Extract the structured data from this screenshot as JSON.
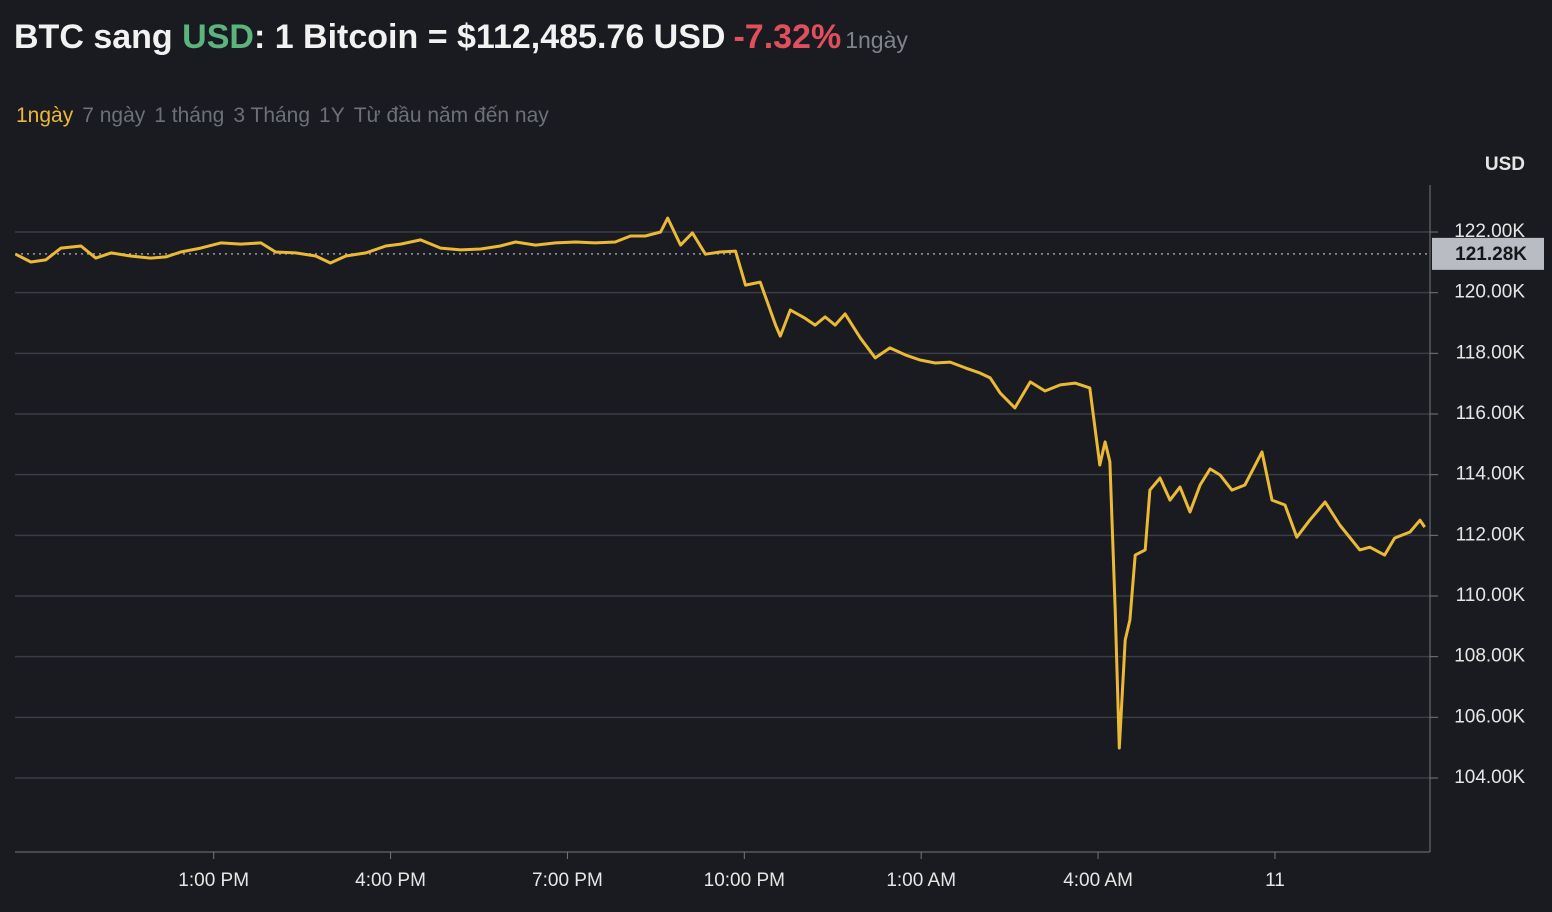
{
  "header": {
    "pair": "BTC sang",
    "quote": "USD",
    "rate": ": 1 Bitcoin = $112,485.76 USD",
    "change": "-7.32%",
    "period": "1ngày"
  },
  "tabs": [
    "1ngày",
    "7 ngày",
    "1 tháng",
    "3 Tháng",
    "1Y",
    "Từ đầu năm đến nay"
  ],
  "active_tab": 0,
  "chart_data": {
    "type": "line",
    "y_label": "USD",
    "color": "#eab935",
    "x": [
      9.64,
      9.9,
      10.15,
      10.41,
      10.75,
      11.0,
      11.26,
      11.59,
      11.93,
      12.19,
      12.44,
      12.78,
      13.12,
      13.46,
      13.8,
      14.05,
      14.39,
      14.73,
      14.98,
      15.24,
      15.58,
      15.92,
      16.17,
      16.51,
      16.85,
      17.19,
      17.53,
      17.86,
      18.12,
      18.46,
      18.8,
      19.14,
      19.47,
      19.81,
      20.07,
      20.32,
      20.58,
      20.7,
      20.92,
      21.12,
      21.34,
      21.59,
      21.85,
      22.02,
      22.27,
      22.53,
      22.61,
      22.78,
      23.03,
      23.2,
      23.37,
      23.54,
      23.71,
      23.97,
      24.22,
      24.47,
      24.73,
      24.98,
      25.24,
      25.49,
      25.75,
      26.0,
      26.17,
      26.34,
      26.59,
      26.85,
      27.1,
      27.36,
      27.61,
      27.86,
      28.03,
      28.12,
      28.2,
      28.29,
      28.36,
      28.46,
      28.54,
      28.63,
      28.8,
      28.88,
      29.05,
      29.22,
      29.39,
      29.56,
      29.73,
      29.9,
      30.07,
      30.27,
      30.49,
      30.78,
      30.95,
      31.17,
      31.37,
      31.59,
      31.85,
      32.1,
      32.44,
      32.61,
      32.86,
      33.03,
      33.29,
      33.46,
      33.54
    ],
    "values": [
      121270,
      121010,
      121080,
      121470,
      121540,
      121140,
      121310,
      121210,
      121140,
      121180,
      121340,
      121470,
      121640,
      121600,
      121640,
      121340,
      121310,
      121210,
      120980,
      121210,
      121310,
      121540,
      121600,
      121740,
      121470,
      121410,
      121440,
      121540,
      121670,
      121570,
      121640,
      121670,
      121640,
      121670,
      121870,
      121870,
      122000,
      122460,
      121570,
      121970,
      121270,
      121340,
      121370,
      120250,
      120350,
      118930,
      118570,
      119430,
      119160,
      118930,
      119200,
      118930,
      119300,
      118500,
      117850,
      118180,
      117950,
      117780,
      117680,
      117710,
      117520,
      117350,
      117190,
      116690,
      116200,
      117060,
      116760,
      116960,
      117020,
      116860,
      114320,
      115080,
      114420,
      109540,
      104990,
      108550,
      109210,
      111350,
      111520,
      113490,
      113890,
      113160,
      113590,
      112770,
      113660,
      114190,
      113990,
      113490,
      113660,
      114750,
      113160,
      113000,
      111940,
      112500,
      113100,
      112340,
      111520,
      111610,
      111350,
      111910,
      112110,
      112500,
      112270
    ],
    "xlim": [
      9.63,
      33.63
    ],
    "xticks": [
      {
        "value": 13,
        "label": "1:00 PM"
      },
      {
        "value": 16,
        "label": "4:00 PM"
      },
      {
        "value": 19,
        "label": "7:00 PM"
      },
      {
        "value": 22,
        "label": "10:00 PM"
      },
      {
        "value": 25,
        "label": "1:00 AM"
      },
      {
        "value": 28,
        "label": "4:00 AM"
      },
      {
        "value": 31,
        "label": "11"
      }
    ],
    "ylim": [
      101560,
      123550
    ],
    "yticks": [
      {
        "value": 104000,
        "label": "104.00K"
      },
      {
        "value": 106000,
        "label": "106.00K"
      },
      {
        "value": 108000,
        "label": "108.00K"
      },
      {
        "value": 110000,
        "label": "110.00K"
      },
      {
        "value": 112000,
        "label": "112.00K"
      },
      {
        "value": 114000,
        "label": "114.00K"
      },
      {
        "value": 116000,
        "label": "116.00K"
      },
      {
        "value": 118000,
        "label": "118.00K"
      },
      {
        "value": 120000,
        "label": "120.00K"
      },
      {
        "value": 122000,
        "label": "122.00K"
      }
    ],
    "grid": true,
    "reference": {
      "value": 121280,
      "label": "121.28K"
    }
  }
}
